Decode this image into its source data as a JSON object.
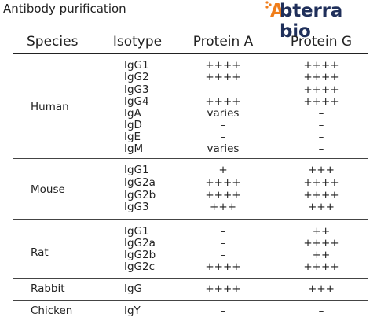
{
  "title": "Antibody purification",
  "logo": {
    "accent": "A",
    "rest": "bterra bio",
    "accent_color": "#f07d1a",
    "text_color": "#1f2f5a"
  },
  "headers": {
    "species": "Species",
    "isotype": "Isotype",
    "protein_a": "Protein A",
    "protein_g": "Protein G"
  },
  "groups": [
    {
      "species": "Human",
      "rows": [
        {
          "isotype": "IgG1",
          "protein_a": "++++",
          "protein_g": "++++"
        },
        {
          "isotype": "IgG2",
          "protein_a": "++++",
          "protein_g": "++++"
        },
        {
          "isotype": "IgG3",
          "protein_a": "–",
          "protein_g": "++++"
        },
        {
          "isotype": "IgG4",
          "protein_a": "++++",
          "protein_g": "++++"
        },
        {
          "isotype": "IgA",
          "protein_a": "varies",
          "protein_g": "–"
        },
        {
          "isotype": "IgD",
          "protein_a": "–",
          "protein_g": "–"
        },
        {
          "isotype": "IgE",
          "protein_a": "–",
          "protein_g": "–"
        },
        {
          "isotype": "IgM",
          "protein_a": "varies",
          "protein_g": "–"
        }
      ]
    },
    {
      "species": "Mouse",
      "rows": [
        {
          "isotype": "IgG1",
          "protein_a": "+",
          "protein_g": "+++"
        },
        {
          "isotype": "IgG2a",
          "protein_a": "++++",
          "protein_g": "++++"
        },
        {
          "isotype": "IgG2b",
          "protein_a": "++++",
          "protein_g": "++++"
        },
        {
          "isotype": "IgG3",
          "protein_a": "+++",
          "protein_g": "+++"
        }
      ]
    },
    {
      "species": "Rat",
      "rows": [
        {
          "isotype": "IgG1",
          "protein_a": "–",
          "protein_g": "++"
        },
        {
          "isotype": "IgG2a",
          "protein_a": "–",
          "protein_g": "++++"
        },
        {
          "isotype": "IgG2b",
          "protein_a": "–",
          "protein_g": "++"
        },
        {
          "isotype": "IgG2c",
          "protein_a": "++++",
          "protein_g": "++++"
        }
      ]
    },
    {
      "species": "Rabbit",
      "rows": [
        {
          "isotype": "IgG",
          "protein_a": "++++",
          "protein_g": "+++"
        }
      ]
    },
    {
      "species": "Chicken",
      "rows": [
        {
          "isotype": "IgY",
          "protein_a": "–",
          "protein_g": "–"
        }
      ]
    }
  ]
}
